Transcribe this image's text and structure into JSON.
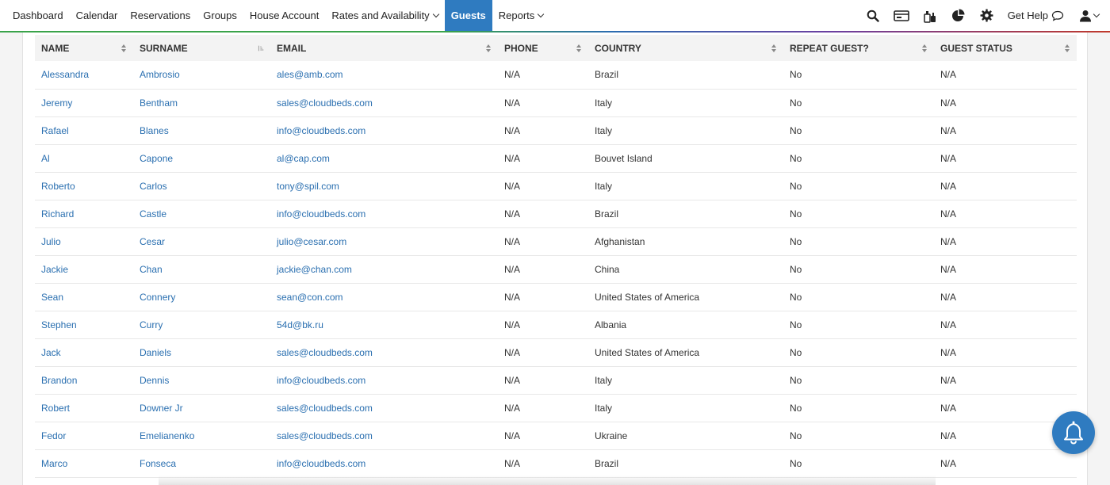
{
  "nav": {
    "items": [
      {
        "label": "Dashboard",
        "dropdown": false,
        "active": false
      },
      {
        "label": "Calendar",
        "dropdown": false,
        "active": false
      },
      {
        "label": "Reservations",
        "dropdown": false,
        "active": false
      },
      {
        "label": "Groups",
        "dropdown": false,
        "active": false
      },
      {
        "label": "House Account",
        "dropdown": false,
        "active": false
      },
      {
        "label": "Rates and Availability",
        "dropdown": true,
        "active": false
      },
      {
        "label": "Guests",
        "dropdown": false,
        "active": true
      },
      {
        "label": "Reports",
        "dropdown": true,
        "active": false
      }
    ],
    "right_icons": [
      "search-icon",
      "cash-register-icon",
      "housekeeping-icon",
      "pie-chart-icon",
      "gear-icon"
    ],
    "get_help_label": "Get Help",
    "user_icon": "user-icon"
  },
  "table": {
    "columns": [
      "NAME",
      "SURNAME",
      "EMAIL",
      "PHONE",
      "COUNTRY",
      "REPEAT GUEST?",
      "GUEST STATUS"
    ],
    "rows": [
      [
        "Alessandra",
        "Ambrosio",
        "ales@amb.com",
        "N/A",
        "Brazil",
        "No",
        "N/A"
      ],
      [
        "Jeremy",
        "Bentham",
        "sales@cloudbeds.com",
        "N/A",
        "Italy",
        "No",
        "N/A"
      ],
      [
        "Rafael",
        "Blanes",
        "info@cloudbeds.com",
        "N/A",
        "Italy",
        "No",
        "N/A"
      ],
      [
        "Al",
        "Capone",
        "al@cap.com",
        "N/A",
        "Bouvet Island",
        "No",
        "N/A"
      ],
      [
        "Roberto",
        "Carlos",
        "tony@spil.com",
        "N/A",
        "Italy",
        "No",
        "N/A"
      ],
      [
        "Richard",
        "Castle",
        "info@cloudbeds.com",
        "N/A",
        "Brazil",
        "No",
        "N/A"
      ],
      [
        "Julio",
        "Cesar",
        "julio@cesar.com",
        "N/A",
        "Afghanistan",
        "No",
        "N/A"
      ],
      [
        "Jackie",
        "Chan",
        "jackie@chan.com",
        "N/A",
        "China",
        "No",
        "N/A"
      ],
      [
        "Sean",
        "Connery",
        "sean@con.com",
        "N/A",
        "United States of America",
        "No",
        "N/A"
      ],
      [
        "Stephen",
        "Curry",
        "54d@bk.ru",
        "N/A",
        "Albania",
        "No",
        "N/A"
      ],
      [
        "Jack",
        "Daniels",
        "sales@cloudbeds.com",
        "N/A",
        "United States of America",
        "No",
        "N/A"
      ],
      [
        "Brandon",
        "Dennis",
        "info@cloudbeds.com",
        "N/A",
        "Italy",
        "No",
        "N/A"
      ],
      [
        "Robert",
        "Downer Jr",
        "sales@cloudbeds.com",
        "N/A",
        "Italy",
        "No",
        "N/A"
      ],
      [
        "Fedor",
        "Emelianenko",
        "sales@cloudbeds.com",
        "N/A",
        "Ukraine",
        "No",
        "N/A"
      ],
      [
        "Marco",
        "Fonseca",
        "info@cloudbeds.com",
        "N/A",
        "Brazil",
        "No",
        "N/A"
      ]
    ]
  },
  "colors": {
    "accent": "#2f7bc0",
    "link": "#2a6fb0"
  },
  "notification_icon": "bell-icon"
}
